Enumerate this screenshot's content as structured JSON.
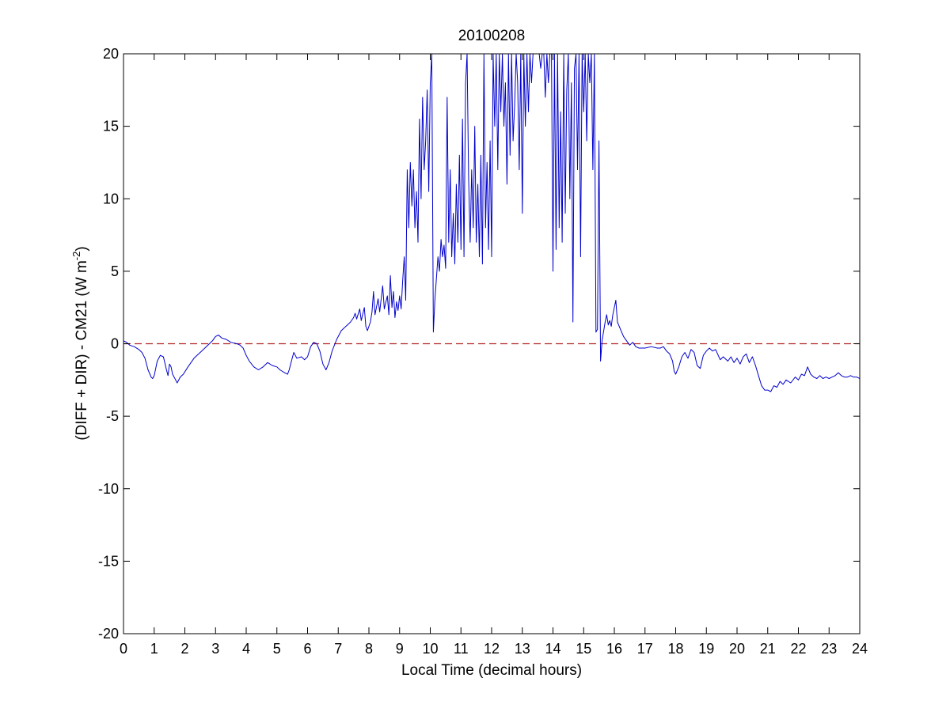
{
  "chart_data": {
    "type": "line",
    "title": "20100208",
    "xlabel": "Local Time (decimal hours)",
    "ylabel": {
      "main": "(DIFF + DIR) - CM21 (W m",
      "superscript": "-2",
      "close": ")"
    },
    "xlim": [
      0,
      24
    ],
    "ylim": [
      -20,
      20
    ],
    "x_ticks": [
      0,
      1,
      2,
      3,
      4,
      5,
      6,
      7,
      8,
      9,
      10,
      11,
      12,
      13,
      14,
      15,
      16,
      17,
      18,
      19,
      20,
      21,
      22,
      23,
      24
    ],
    "y_ticks": [
      -20,
      -15,
      -10,
      -5,
      0,
      5,
      10,
      15,
      20
    ],
    "grid": false,
    "legend": "none",
    "reference_line": {
      "y": 0,
      "style": "dashed",
      "color": "#b22222"
    },
    "series": [
      {
        "color": "#0000cc",
        "points": [
          [
            0.0,
            0.2
          ],
          [
            0.1,
            0.1
          ],
          [
            0.2,
            -0.1
          ],
          [
            0.35,
            -0.2
          ],
          [
            0.5,
            -0.4
          ],
          [
            0.6,
            -0.6
          ],
          [
            0.7,
            -1.0
          ],
          [
            0.8,
            -1.8
          ],
          [
            0.9,
            -2.3
          ],
          [
            0.95,
            -2.4
          ],
          [
            1.0,
            -2.2
          ],
          [
            1.1,
            -1.2
          ],
          [
            1.2,
            -0.8
          ],
          [
            1.3,
            -0.9
          ],
          [
            1.4,
            -1.8
          ],
          [
            1.45,
            -2.2
          ],
          [
            1.5,
            -1.4
          ],
          [
            1.55,
            -1.6
          ],
          [
            1.6,
            -2.1
          ],
          [
            1.7,
            -2.5
          ],
          [
            1.75,
            -2.7
          ],
          [
            1.85,
            -2.3
          ],
          [
            1.95,
            -2.1
          ],
          [
            2.1,
            -1.6
          ],
          [
            2.3,
            -1.0
          ],
          [
            2.5,
            -0.6
          ],
          [
            2.7,
            -0.2
          ],
          [
            2.9,
            0.2
          ],
          [
            3.0,
            0.5
          ],
          [
            3.1,
            0.6
          ],
          [
            3.2,
            0.4
          ],
          [
            3.35,
            0.3
          ],
          [
            3.5,
            0.1
          ],
          [
            3.7,
            0.0
          ],
          [
            3.8,
            -0.1
          ],
          [
            3.9,
            -0.3
          ],
          [
            4.0,
            -0.8
          ],
          [
            4.1,
            -1.2
          ],
          [
            4.25,
            -1.6
          ],
          [
            4.4,
            -1.8
          ],
          [
            4.55,
            -1.6
          ],
          [
            4.7,
            -1.3
          ],
          [
            4.85,
            -1.5
          ],
          [
            5.0,
            -1.6
          ],
          [
            5.1,
            -1.8
          ],
          [
            5.25,
            -2.0
          ],
          [
            5.35,
            -2.1
          ],
          [
            5.4,
            -1.8
          ],
          [
            5.5,
            -1.0
          ],
          [
            5.55,
            -0.6
          ],
          [
            5.65,
            -1.0
          ],
          [
            5.8,
            -0.9
          ],
          [
            5.9,
            -1.1
          ],
          [
            6.0,
            -0.9
          ],
          [
            6.1,
            -0.2
          ],
          [
            6.2,
            0.1
          ],
          [
            6.3,
            0.0
          ],
          [
            6.4,
            -0.5
          ],
          [
            6.5,
            -1.4
          ],
          [
            6.6,
            -1.8
          ],
          [
            6.7,
            -1.3
          ],
          [
            6.8,
            -0.5
          ],
          [
            6.95,
            0.3
          ],
          [
            7.1,
            0.9
          ],
          [
            7.2,
            1.1
          ],
          [
            7.3,
            1.3
          ],
          [
            7.4,
            1.5
          ],
          [
            7.5,
            1.8
          ],
          [
            7.55,
            2.1
          ],
          [
            7.6,
            1.7
          ],
          [
            7.7,
            2.4
          ],
          [
            7.75,
            1.6
          ],
          [
            7.85,
            2.5
          ],
          [
            7.9,
            1.2
          ],
          [
            7.95,
            0.9
          ],
          [
            8.05,
            1.5
          ],
          [
            8.1,
            2.2
          ],
          [
            8.15,
            3.6
          ],
          [
            8.2,
            2.0
          ],
          [
            8.3,
            3.1
          ],
          [
            8.35,
            2.2
          ],
          [
            8.45,
            4.0
          ],
          [
            8.5,
            2.4
          ],
          [
            8.6,
            3.3
          ],
          [
            8.65,
            2.0
          ],
          [
            8.7,
            4.7
          ],
          [
            8.75,
            2.5
          ],
          [
            8.8,
            3.6
          ],
          [
            8.85,
            1.8
          ],
          [
            8.9,
            2.9
          ],
          [
            8.95,
            2.3
          ],
          [
            9.0,
            3.3
          ],
          [
            9.05,
            2.4
          ],
          [
            9.1,
            4.3
          ],
          [
            9.15,
            6.0
          ],
          [
            9.2,
            3.0
          ],
          [
            9.25,
            12.0
          ],
          [
            9.3,
            8.0
          ],
          [
            9.35,
            12.5
          ],
          [
            9.4,
            9.5
          ],
          [
            9.45,
            12.0
          ],
          [
            9.5,
            8.0
          ],
          [
            9.55,
            10.5
          ],
          [
            9.6,
            7.0
          ],
          [
            9.65,
            15.5
          ],
          [
            9.7,
            10.0
          ],
          [
            9.75,
            17.0
          ],
          [
            9.8,
            12.0
          ],
          [
            9.85,
            14.0
          ],
          [
            9.9,
            17.5
          ],
          [
            9.95,
            10.5
          ],
          [
            10.0,
            18.0
          ],
          [
            10.05,
            20.0
          ],
          [
            10.1,
            0.8
          ],
          [
            10.15,
            3.0
          ],
          [
            10.25,
            6.0
          ],
          [
            10.3,
            5.0
          ],
          [
            10.35,
            7.2
          ],
          [
            10.4,
            6.0
          ],
          [
            10.45,
            6.8
          ],
          [
            10.5,
            5.2
          ],
          [
            10.55,
            17.0
          ],
          [
            10.6,
            7.0
          ],
          [
            10.65,
            12.0
          ],
          [
            10.7,
            6.0
          ],
          [
            10.75,
            9.0
          ],
          [
            10.8,
            5.5
          ],
          [
            10.85,
            11.0
          ],
          [
            10.9,
            7.0
          ],
          [
            10.95,
            13.0
          ],
          [
            11.0,
            6.5
          ],
          [
            11.05,
            15.5
          ],
          [
            11.1,
            6.0
          ],
          [
            11.15,
            18.0
          ],
          [
            11.2,
            20.0
          ],
          [
            11.25,
            11.5
          ],
          [
            11.3,
            7.0
          ],
          [
            11.35,
            12.0
          ],
          [
            11.4,
            8.0
          ],
          [
            11.45,
            15.0
          ],
          [
            11.5,
            7.0
          ],
          [
            11.55,
            11.0
          ],
          [
            11.6,
            6.0
          ],
          [
            11.65,
            13.0
          ],
          [
            11.7,
            5.5
          ],
          [
            11.75,
            20.0
          ],
          [
            11.8,
            8.0
          ],
          [
            11.85,
            12.5
          ],
          [
            11.9,
            6.5
          ],
          [
            11.95,
            14.0
          ],
          [
            12.0,
            6.0
          ],
          [
            12.05,
            20.0
          ],
          [
            12.1,
            15.0
          ],
          [
            12.15,
            20.0
          ],
          [
            12.2,
            12.0
          ],
          [
            12.25,
            20.0
          ],
          [
            12.3,
            16.0
          ],
          [
            12.35,
            20.0
          ],
          [
            12.4,
            15.0
          ],
          [
            12.45,
            18.0
          ],
          [
            12.5,
            11.0
          ],
          [
            12.55,
            20.0
          ],
          [
            12.6,
            13.0
          ],
          [
            12.65,
            20.0
          ],
          [
            12.7,
            14.0
          ],
          [
            12.75,
            16.5
          ],
          [
            12.8,
            20.0
          ],
          [
            12.85,
            18.0
          ],
          [
            12.9,
            12.0
          ],
          [
            12.95,
            20.0
          ],
          [
            13.0,
            9.0
          ],
          [
            13.05,
            20.0
          ],
          [
            13.1,
            15.0
          ],
          [
            13.15,
            20.0
          ],
          [
            13.2,
            16.0
          ],
          [
            13.25,
            20.0
          ],
          [
            13.3,
            18.0
          ],
          [
            13.35,
            20.0
          ],
          [
            13.4,
            20.0
          ],
          [
            13.45,
            20.0
          ],
          [
            13.5,
            20.0
          ],
          [
            13.55,
            20.0
          ],
          [
            13.6,
            19.0
          ],
          [
            13.65,
            20.0
          ],
          [
            13.7,
            20.0
          ],
          [
            13.75,
            17.0
          ],
          [
            13.8,
            20.0
          ],
          [
            13.85,
            18.0
          ],
          [
            13.9,
            20.0
          ],
          [
            13.95,
            20.0
          ],
          [
            14.0,
            5.0
          ],
          [
            14.05,
            20.0
          ],
          [
            14.1,
            6.5
          ],
          [
            14.15,
            20.0
          ],
          [
            14.2,
            8.0
          ],
          [
            14.25,
            16.0
          ],
          [
            14.3,
            7.0
          ],
          [
            14.35,
            20.0
          ],
          [
            14.4,
            9.0
          ],
          [
            14.45,
            17.5
          ],
          [
            14.5,
            20.0
          ],
          [
            14.55,
            10.0
          ],
          [
            14.6,
            18.0
          ],
          [
            14.65,
            1.5
          ],
          [
            14.7,
            19.0
          ],
          [
            14.75,
            20.0
          ],
          [
            14.8,
            12.0
          ],
          [
            14.85,
            20.0
          ],
          [
            14.9,
            6.0
          ],
          [
            14.95,
            20.0
          ],
          [
            15.0,
            16.0
          ],
          [
            15.05,
            20.0
          ],
          [
            15.1,
            14.0
          ],
          [
            15.15,
            20.0
          ],
          [
            15.2,
            18.0
          ],
          [
            15.25,
            20.0
          ],
          [
            15.3,
            12.0
          ],
          [
            15.35,
            20.0
          ],
          [
            15.4,
            0.8
          ],
          [
            15.45,
            1.0
          ],
          [
            15.5,
            14.0
          ],
          [
            15.55,
            -1.2
          ],
          [
            15.6,
            0.2
          ],
          [
            15.7,
            1.5
          ],
          [
            15.75,
            2.0
          ],
          [
            15.8,
            1.3
          ],
          [
            15.85,
            1.6
          ],
          [
            15.9,
            1.2
          ],
          [
            15.95,
            2.0
          ],
          [
            16.0,
            2.5
          ],
          [
            16.05,
            3.0
          ],
          [
            16.1,
            1.5
          ],
          [
            16.2,
            1.0
          ],
          [
            16.3,
            0.5
          ],
          [
            16.4,
            0.2
          ],
          [
            16.5,
            -0.1
          ],
          [
            16.6,
            0.1
          ],
          [
            16.7,
            -0.2
          ],
          [
            16.8,
            -0.3
          ],
          [
            17.0,
            -0.3
          ],
          [
            17.2,
            -0.2
          ],
          [
            17.4,
            -0.3
          ],
          [
            17.5,
            -0.3
          ],
          [
            17.6,
            -0.2
          ],
          [
            17.7,
            -0.5
          ],
          [
            17.8,
            -0.7
          ],
          [
            17.9,
            -1.2
          ],
          [
            17.95,
            -1.9
          ],
          [
            18.0,
            -2.1
          ],
          [
            18.1,
            -1.6
          ],
          [
            18.2,
            -0.9
          ],
          [
            18.3,
            -0.6
          ],
          [
            18.4,
            -1.0
          ],
          [
            18.5,
            -0.4
          ],
          [
            18.6,
            -0.6
          ],
          [
            18.7,
            -1.5
          ],
          [
            18.8,
            -1.7
          ],
          [
            18.9,
            -0.8
          ],
          [
            19.0,
            -0.5
          ],
          [
            19.1,
            -0.3
          ],
          [
            19.2,
            -0.5
          ],
          [
            19.3,
            -0.4
          ],
          [
            19.45,
            -1.1
          ],
          [
            19.55,
            -0.9
          ],
          [
            19.7,
            -1.2
          ],
          [
            19.8,
            -0.9
          ],
          [
            19.9,
            -1.3
          ],
          [
            20.0,
            -1.0
          ],
          [
            20.1,
            -1.4
          ],
          [
            20.2,
            -0.9
          ],
          [
            20.3,
            -0.7
          ],
          [
            20.4,
            -1.3
          ],
          [
            20.5,
            -0.9
          ],
          [
            20.6,
            -1.5
          ],
          [
            20.7,
            -2.2
          ],
          [
            20.8,
            -2.9
          ],
          [
            20.9,
            -3.2
          ],
          [
            21.0,
            -3.2
          ],
          [
            21.1,
            -3.3
          ],
          [
            21.2,
            -2.9
          ],
          [
            21.3,
            -3.0
          ],
          [
            21.4,
            -2.6
          ],
          [
            21.5,
            -2.8
          ],
          [
            21.6,
            -2.5
          ],
          [
            21.75,
            -2.7
          ],
          [
            21.9,
            -2.3
          ],
          [
            22.0,
            -2.5
          ],
          [
            22.1,
            -2.1
          ],
          [
            22.2,
            -2.2
          ],
          [
            22.3,
            -1.6
          ],
          [
            22.4,
            -2.1
          ],
          [
            22.5,
            -2.3
          ],
          [
            22.6,
            -2.4
          ],
          [
            22.7,
            -2.2
          ],
          [
            22.8,
            -2.4
          ],
          [
            22.9,
            -2.3
          ],
          [
            23.0,
            -2.4
          ],
          [
            23.1,
            -2.3
          ],
          [
            23.2,
            -2.2
          ],
          [
            23.3,
            -2.0
          ],
          [
            23.4,
            -2.2
          ],
          [
            23.5,
            -2.3
          ],
          [
            23.6,
            -2.3
          ],
          [
            23.7,
            -2.2
          ],
          [
            23.8,
            -2.3
          ],
          [
            23.9,
            -2.3
          ],
          [
            24.0,
            -2.4
          ]
        ]
      }
    ]
  }
}
